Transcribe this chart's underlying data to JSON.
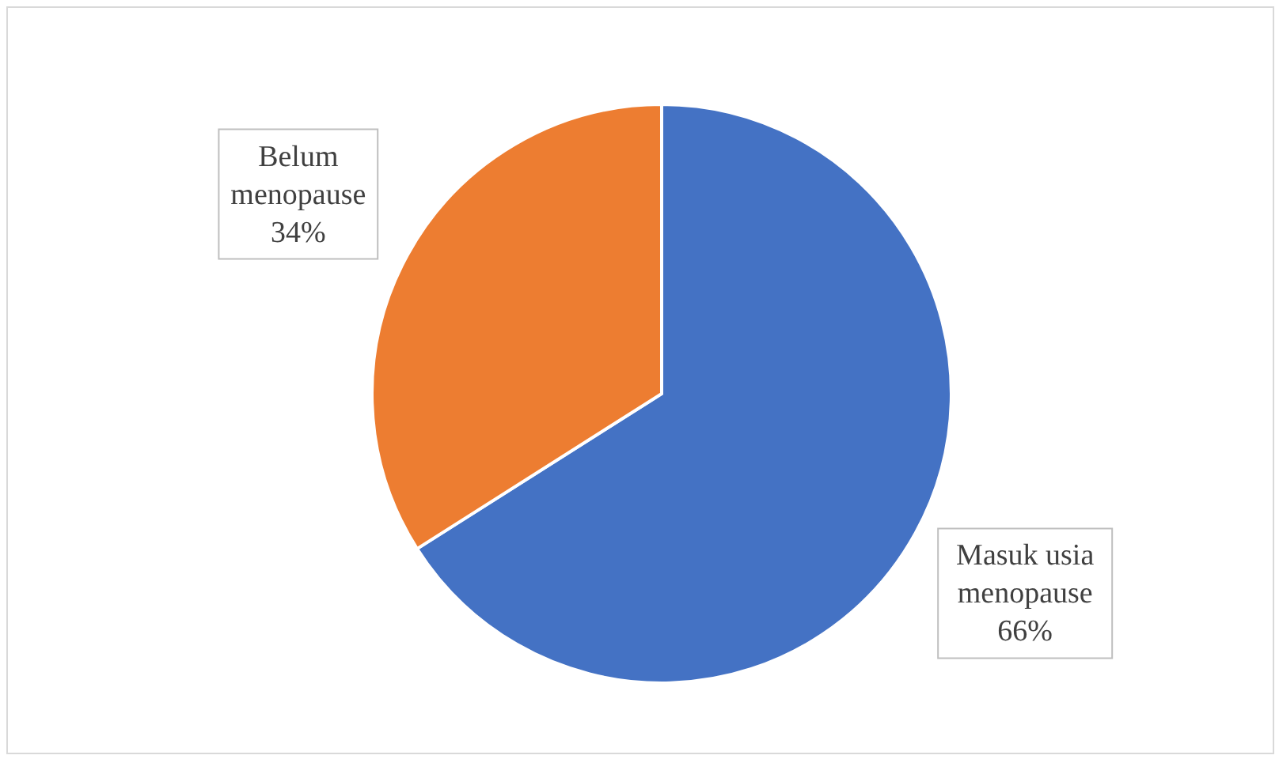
{
  "chart_data": {
    "type": "pie",
    "categories": [
      "Masuk usia menopause",
      "Belum menopause"
    ],
    "values": [
      66,
      34
    ],
    "colors": [
      "#4472c4",
      "#ed7d31"
    ],
    "value_labels": [
      "66%",
      "34%"
    ],
    "legend": false
  }
}
